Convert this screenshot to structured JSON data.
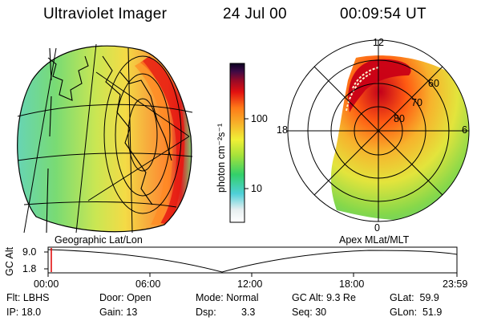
{
  "header": {
    "title": "Ultraviolet Imager",
    "date": "24 Jul 00",
    "time": "00:09:54 UT"
  },
  "colorbar": {
    "unit_label": "photon cm⁻²s⁻¹",
    "ticks": [
      "100",
      "10"
    ]
  },
  "panels": {
    "left_caption": "Geographic Lat/Lon",
    "right_caption": "Apex MLat/MLT"
  },
  "polar": {
    "mlt_labels": [
      "12",
      "18",
      "6",
      "0"
    ],
    "lat_labels": [
      "60",
      "70",
      "80"
    ]
  },
  "timeline": {
    "ylabel": "GC Alt",
    "y_ticks": [
      "9.0",
      "1.8"
    ],
    "x_ticks": [
      "00:00",
      "06:00",
      "12:00",
      "18:00",
      "23:59"
    ],
    "cursor_time": "00:09:54"
  },
  "status": {
    "filter": {
      "label": "Flt:",
      "value": "LBHS"
    },
    "ip": {
      "label": "IP:",
      "value": "18.0"
    },
    "door": {
      "label": "Door:",
      "value": "Open"
    },
    "gain": {
      "label": "Gain:",
      "value": "13"
    },
    "mode": {
      "label": "Mode:",
      "value": "Normal"
    },
    "dsp": {
      "label": "Dsp:",
      "value": "3.3"
    },
    "gc_alt": {
      "label": "GC Alt:",
      "value": "9.3 Re"
    },
    "seq": {
      "label": "Seq:",
      "value": "30"
    },
    "glat": {
      "label": "GLat:",
      "value": "59.9"
    },
    "glon": {
      "label": "GLon:",
      "value": "51.9"
    }
  },
  "colors": {
    "accent_cursor": "#e00000",
    "background": "#ffffff"
  }
}
